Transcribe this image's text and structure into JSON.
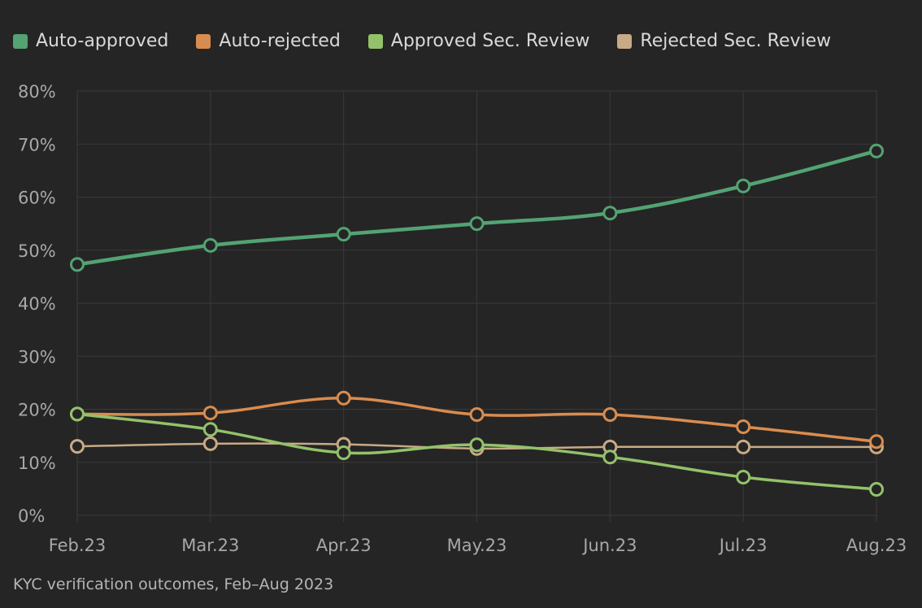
{
  "chart_data": {
    "type": "line",
    "title": "",
    "xlabel": "",
    "ylabel": "",
    "ylim": [
      0,
      80
    ],
    "y_ticks": [
      "0%",
      "10%",
      "20%",
      "30%",
      "40%",
      "50%",
      "60%",
      "70%",
      "80%"
    ],
    "y_tick_values": [
      0,
      10,
      20,
      30,
      40,
      50,
      60,
      70,
      80
    ],
    "grid": true,
    "legend_position": "top-left",
    "categories": [
      "Feb.23",
      "Mar.23",
      "Apr.23",
      "May.23",
      "Jun.23",
      "Jul.23",
      "Aug.23"
    ],
    "series": [
      {
        "name": "Auto-approved",
        "color": "#53a373",
        "values": [
          47.3,
          50.9,
          53.0,
          55.0,
          57.0,
          62.1,
          68.7
        ]
      },
      {
        "name": "Auto-rejected",
        "color": "#d98c4f",
        "values": [
          19.1,
          19.3,
          22.1,
          19.0,
          19.0,
          16.7,
          13.9
        ]
      },
      {
        "name": "Approved Sec. Review",
        "color": "#93c26a",
        "values": [
          19.1,
          16.2,
          11.8,
          13.3,
          11.0,
          7.2,
          4.9
        ]
      },
      {
        "name": "Rejected Sec. Review",
        "color": "#c8aa86",
        "values": [
          13.0,
          13.5,
          13.4,
          12.6,
          12.9,
          12.9,
          12.9
        ]
      }
    ],
    "caption": "KYC verification outcomes, Feb–Aug 2023"
  }
}
